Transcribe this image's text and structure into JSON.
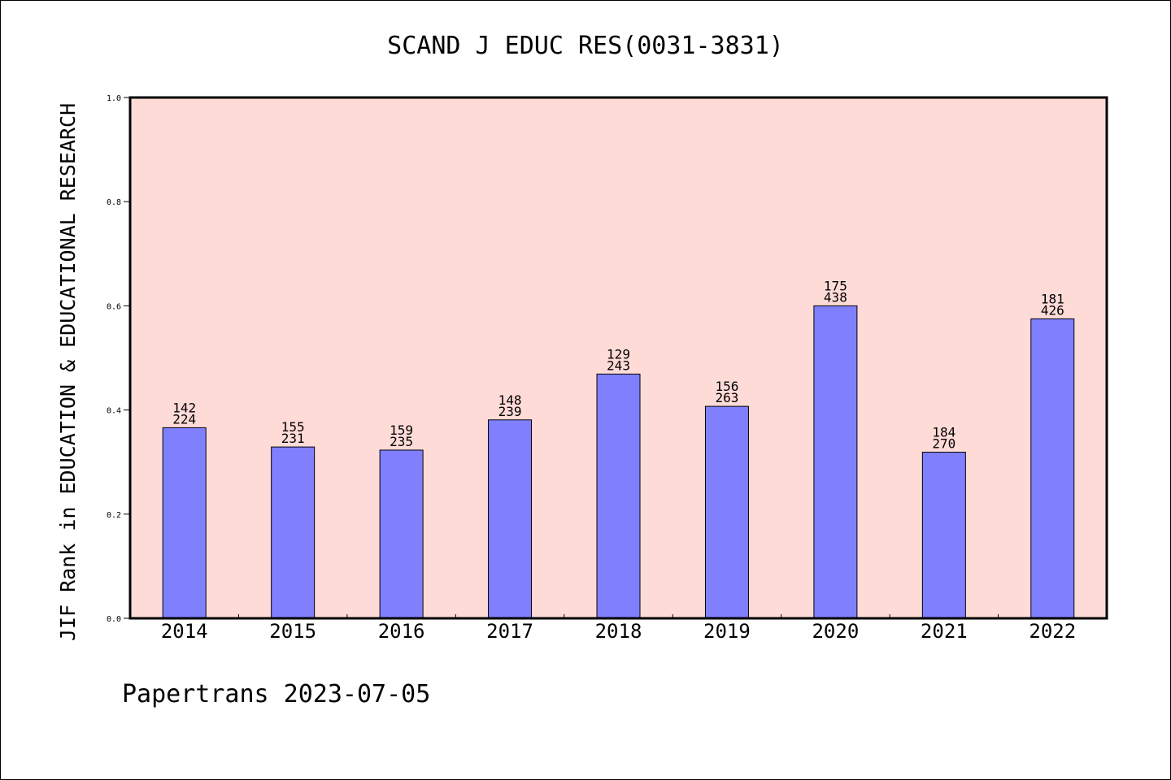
{
  "chart_data": {
    "type": "bar",
    "title": "SCAND J EDUC RES(0031-3831)",
    "xlabel": "",
    "ylabel": "JIF Rank in EDUCATION & EDUCATIONAL RESEARCH",
    "ylim": [
      0,
      1.0
    ],
    "yticks": [
      "0.0",
      "0.2",
      "0.4",
      "0.6",
      "0.8",
      "1.0"
    ],
    "categories": [
      "2014",
      "2015",
      "2016",
      "2017",
      "2018",
      "2019",
      "2020",
      "2021",
      "2022"
    ],
    "values": [
      0.366,
      0.329,
      0.323,
      0.381,
      0.469,
      0.407,
      0.6,
      0.319,
      0.575
    ],
    "labels": [
      [
        "142",
        "224"
      ],
      [
        "155",
        "231"
      ],
      [
        "159",
        "235"
      ],
      [
        "148",
        "239"
      ],
      [
        "129",
        "243"
      ],
      [
        "156",
        "263"
      ],
      [
        "175",
        "438"
      ],
      [
        "184",
        "270"
      ],
      [
        "181",
        "426"
      ]
    ],
    "grid": false,
    "colors": {
      "plot_background": "#ffdbd8",
      "bar_fill": "#8080ff",
      "bar_stroke": "#000000"
    }
  },
  "footer": {
    "credit": "Papertrans 2023-07-05"
  }
}
